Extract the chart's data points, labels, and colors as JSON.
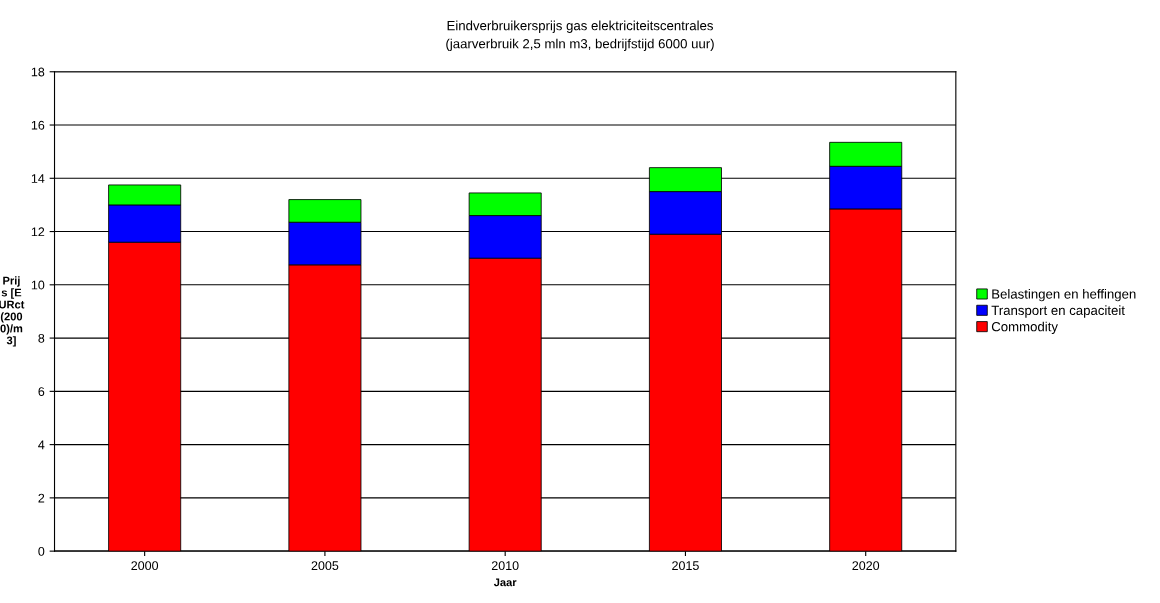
{
  "chart_data": {
    "type": "bar",
    "stacked": true,
    "title": "Eindverbruikersprijs gas elektriciteitscentrales",
    "subtitle": "(jaarverbruik 2,5 mln m3, bedrijfstijd 6000 uur)",
    "xlabel": "Jaar",
    "ylabel": "Prijs [EURct(2000)/m3]",
    "categories": [
      "2000",
      "2005",
      "2010",
      "2015",
      "2020"
    ],
    "series": [
      {
        "name": "Commodity",
        "color": "#ff0000",
        "values": [
          11.6,
          10.75,
          11.0,
          11.9,
          12.85
        ]
      },
      {
        "name": "Transport en capaciteit",
        "color": "#0000ff",
        "values": [
          1.4,
          1.6,
          1.6,
          1.6,
          1.6
        ]
      },
      {
        "name": "Belastingen en heffingen",
        "color": "#00ff00",
        "values": [
          0.75,
          0.85,
          0.85,
          0.9,
          0.9
        ]
      }
    ],
    "ylim": [
      0,
      18
    ],
    "yticks": [
      0,
      2,
      4,
      6,
      8,
      10,
      12,
      14,
      16,
      18
    ],
    "grid": "y",
    "legend": "right"
  }
}
